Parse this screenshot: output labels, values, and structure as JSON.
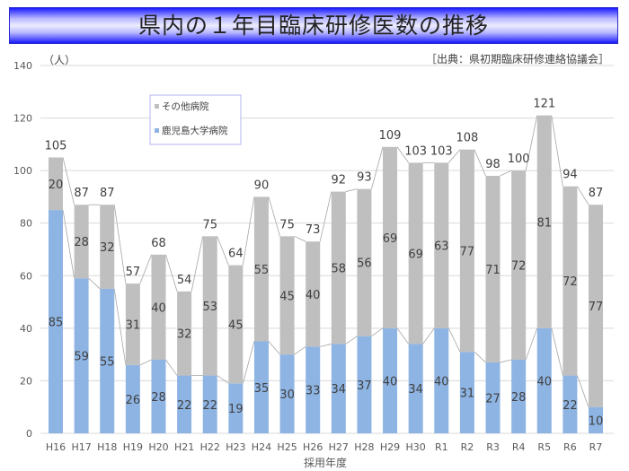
{
  "title": "県内の１年目臨床研修医数の推移",
  "chart_data": {
    "type": "bar",
    "stacked": true,
    "title": "県内の１年目臨床研修医数の推移",
    "ylabel": "（人）",
    "xlabel": "採用年度",
    "source": "［出典：県初期臨床研修連絡協議会］",
    "ylim": [
      0,
      140
    ],
    "yticks": [
      0,
      20,
      40,
      60,
      80,
      100,
      120,
      140
    ],
    "grid": true,
    "legend_position": "top-left",
    "categories": [
      "H16",
      "H17",
      "H18",
      "H19",
      "H20",
      "H21",
      "H22",
      "H23",
      "H24",
      "H25",
      "H26",
      "H27",
      "H28",
      "H29",
      "H30",
      "R1",
      "R2",
      "R3",
      "R4",
      "R5",
      "R6",
      "R7"
    ],
    "series": [
      {
        "name": "鹿児島大学病院",
        "color": "#8eb4e3",
        "values": [
          85,
          59,
          55,
          26,
          28,
          22,
          22,
          19,
          35,
          30,
          33,
          34,
          37,
          40,
          34,
          40,
          31,
          27,
          28,
          40,
          22,
          10
        ]
      },
      {
        "name": "その他病院",
        "color": "#bfbfbf",
        "values": [
          20,
          28,
          32,
          31,
          40,
          32,
          53,
          45,
          55,
          45,
          40,
          58,
          56,
          69,
          69,
          63,
          77,
          71,
          72,
          81,
          72,
          77
        ]
      }
    ],
    "totals": [
      105,
      87,
      87,
      57,
      68,
      54,
      75,
      64,
      90,
      75,
      73,
      92,
      93,
      109,
      103,
      103,
      108,
      98,
      100,
      121,
      94,
      87
    ]
  }
}
